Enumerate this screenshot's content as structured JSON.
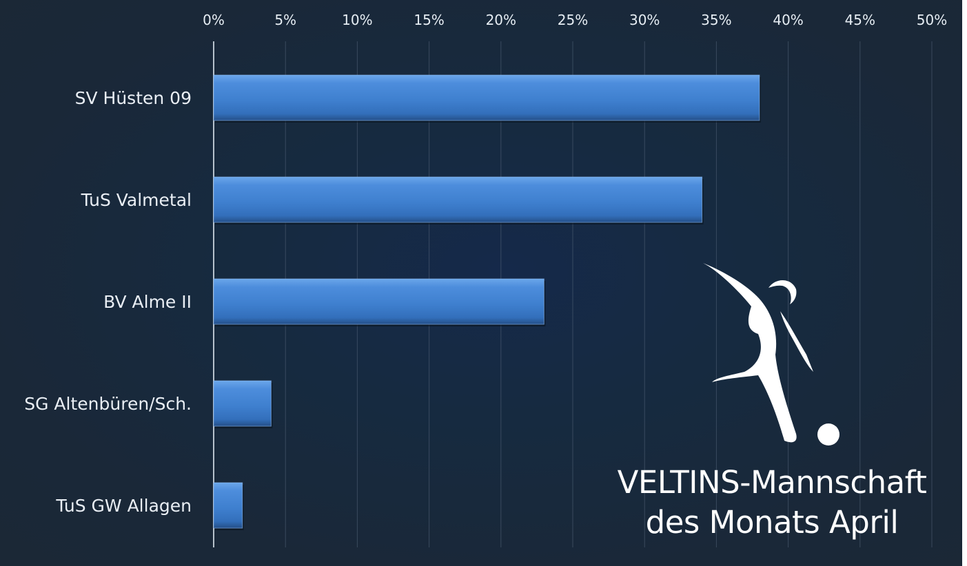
{
  "chart_data": {
    "type": "bar",
    "orientation": "horizontal",
    "categories": [
      "SV Hüsten 09",
      "TuS Valmetal",
      "BV Alme II",
      "SG Altenbüren/Sch.",
      "TuS GW Allagen"
    ],
    "values": [
      38,
      34,
      23,
      4,
      2
    ],
    "value_unit": "%",
    "xlim": [
      0,
      50
    ],
    "x_ticks": [
      "0%",
      "5%",
      "10%",
      "15%",
      "20%",
      "25%",
      "30%",
      "35%",
      "40%",
      "45%",
      "50%"
    ],
    "x_axis_position": "top",
    "grid": true,
    "legend": "none",
    "bar_color": "#3f80cf",
    "title": "",
    "xlabel": "",
    "ylabel": ""
  },
  "caption": {
    "line1": "VELTINS-Mannschaft",
    "line2": "des Monats April"
  },
  "logo": {
    "icon": "football-player-kicking-ball-icon"
  },
  "colors": {
    "background": "#1a2838",
    "grid": "#55657a",
    "text": "#e9eef4"
  }
}
